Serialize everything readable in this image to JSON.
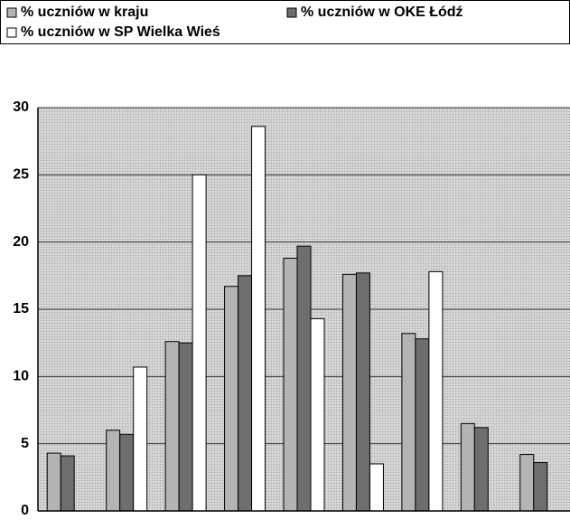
{
  "chart_data": {
    "type": "bar",
    "categories": [
      null,
      null,
      null,
      null,
      null,
      null,
      null,
      null,
      null
    ],
    "series": [
      {
        "name": "% uczniów w kraju",
        "color": "#b4b4b4",
        "values": [
          4.3,
          6.0,
          12.6,
          16.7,
          18.8,
          17.6,
          13.2,
          6.5,
          4.2
        ]
      },
      {
        "name": "% uczniów w OKE Łódź",
        "color": "#6e6e6e",
        "values": [
          4.1,
          5.7,
          12.5,
          17.5,
          19.7,
          17.7,
          12.8,
          6.2,
          3.6
        ]
      },
      {
        "name": "% uczniów w SP Wielka Wieś",
        "color": "#ffffff",
        "values": [
          0,
          10.7,
          25.0,
          28.6,
          14.3,
          3.5,
          17.8,
          0,
          0
        ]
      }
    ],
    "ylim": [
      0,
      30
    ],
    "yticks": [
      0,
      5,
      10,
      15,
      20,
      25,
      30
    ],
    "grid": true,
    "legend": "top"
  }
}
